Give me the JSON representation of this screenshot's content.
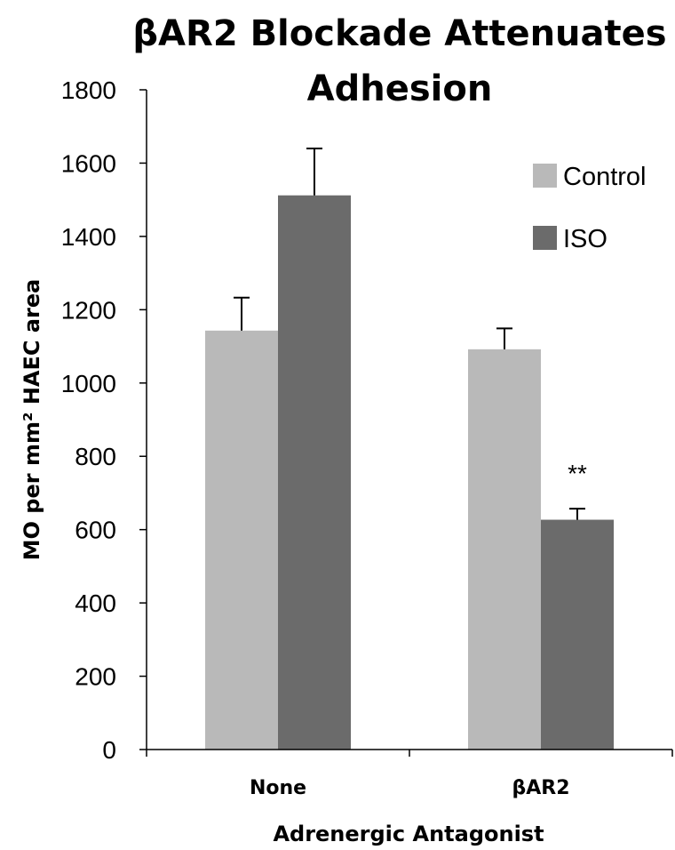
{
  "chart_data": {
    "type": "bar",
    "title_lines": [
      "βAR2 Blockade Attenuates",
      "Adhesion"
    ],
    "xlabel": "Adrenergic Antagonist",
    "ylabel": "MO per mm² HAEC area",
    "categories": [
      "None",
      "βAR2"
    ],
    "series": [
      {
        "name": "Control",
        "color": "#b9b9b9",
        "values": [
          1143,
          1092
        ],
        "errors": [
          90,
          57
        ]
      },
      {
        "name": "ISO",
        "color": "#6b6b6b",
        "values": [
          1512,
          627
        ],
        "errors": [
          128,
          30
        ]
      }
    ],
    "ylim": [
      0,
      1800
    ],
    "yticks": [
      0,
      200,
      400,
      600,
      800,
      1000,
      1200,
      1400,
      1600,
      1800
    ],
    "annotations": [
      {
        "category": "βAR2",
        "series": "ISO",
        "text": "**"
      }
    ],
    "legend_position": "top-right",
    "grid": false
  }
}
